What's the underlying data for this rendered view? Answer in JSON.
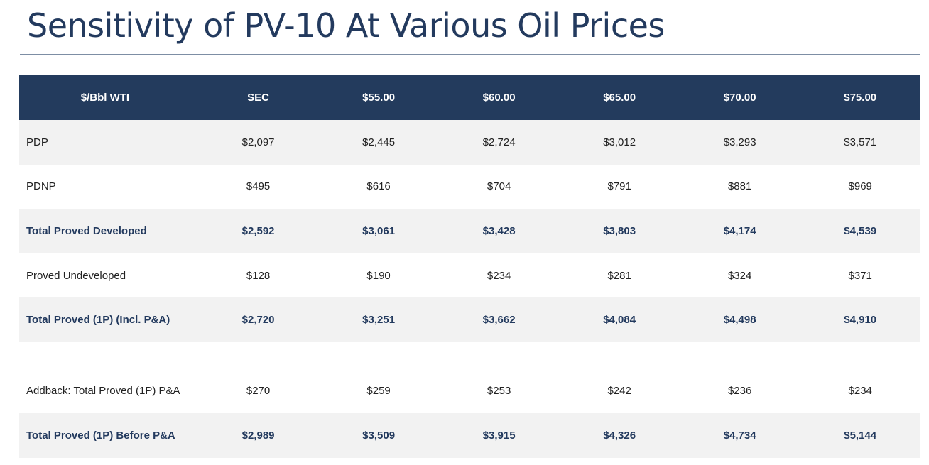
{
  "title": "Sensitivity of PV-10 At Various Oil Prices",
  "table": {
    "headers": [
      "$/Bbl WTI",
      "SEC",
      "$55.00",
      "$60.00",
      "$65.00",
      "$70.00",
      "$75.00"
    ],
    "rows": [
      {
        "label": "PDP",
        "values": [
          "$2,097",
          "$2,445",
          "$2,724",
          "$3,012",
          "$3,293",
          "$3,571"
        ]
      },
      {
        "label": "PDNP",
        "values": [
          "$495",
          "$616",
          "$704",
          "$791",
          "$881",
          "$969"
        ]
      },
      {
        "label": "Total Proved Developed",
        "values": [
          "$2,592",
          "$3,061",
          "$3,428",
          "$3,803",
          "$4,174",
          "$4,539"
        ]
      },
      {
        "label": "Proved Undeveloped",
        "values": [
          "$128",
          "$190",
          "$234",
          "$281",
          "$324",
          "$371"
        ]
      },
      {
        "label": "Total Proved (1P) (Incl. P&A)",
        "values": [
          "$2,720",
          "$3,251",
          "$3,662",
          "$4,084",
          "$4,498",
          "$4,910"
        ]
      },
      {
        "label": "Addback: Total Proved (1P) P&A",
        "values": [
          "$270",
          "$259",
          "$253",
          "$242",
          "$236",
          "$234"
        ]
      },
      {
        "label": "Total Proved (1P) Before P&A",
        "values": [
          "$2,989",
          "$3,509",
          "$3,915",
          "$4,326",
          "$4,734",
          "$5,144"
        ]
      }
    ]
  },
  "colors": {
    "header_bg": "#233b5d",
    "title": "#233a5e",
    "row_shade": "#f2f2f2"
  }
}
